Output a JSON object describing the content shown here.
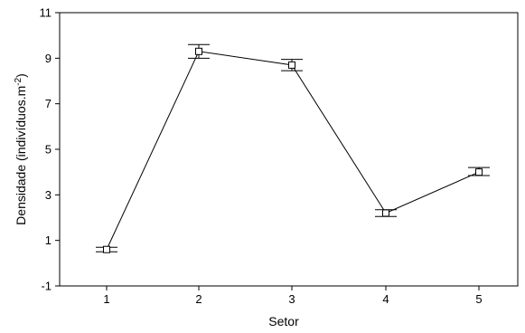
{
  "chart_data": {
    "type": "line",
    "title": "",
    "xlabel": "Setor",
    "ylabel_main": "Densidade (indivíduos.m",
    "ylabel_sup": "-2",
    "ylabel_close": ")",
    "categories": [
      "1",
      "2",
      "3",
      "4",
      "5"
    ],
    "series": [
      {
        "values": [
          0.6,
          9.3,
          8.7,
          2.2,
          4.0
        ],
        "error_low": [
          0.5,
          9.0,
          8.45,
          2.05,
          3.85
        ],
        "error_high": [
          0.7,
          9.6,
          8.95,
          2.35,
          4.2
        ]
      }
    ],
    "ylim": [
      -1,
      11
    ],
    "yticks": [
      -1,
      1,
      3,
      5,
      7,
      9,
      11
    ],
    "grid": false,
    "marker": "hollow-square",
    "line_color": "#000000"
  }
}
